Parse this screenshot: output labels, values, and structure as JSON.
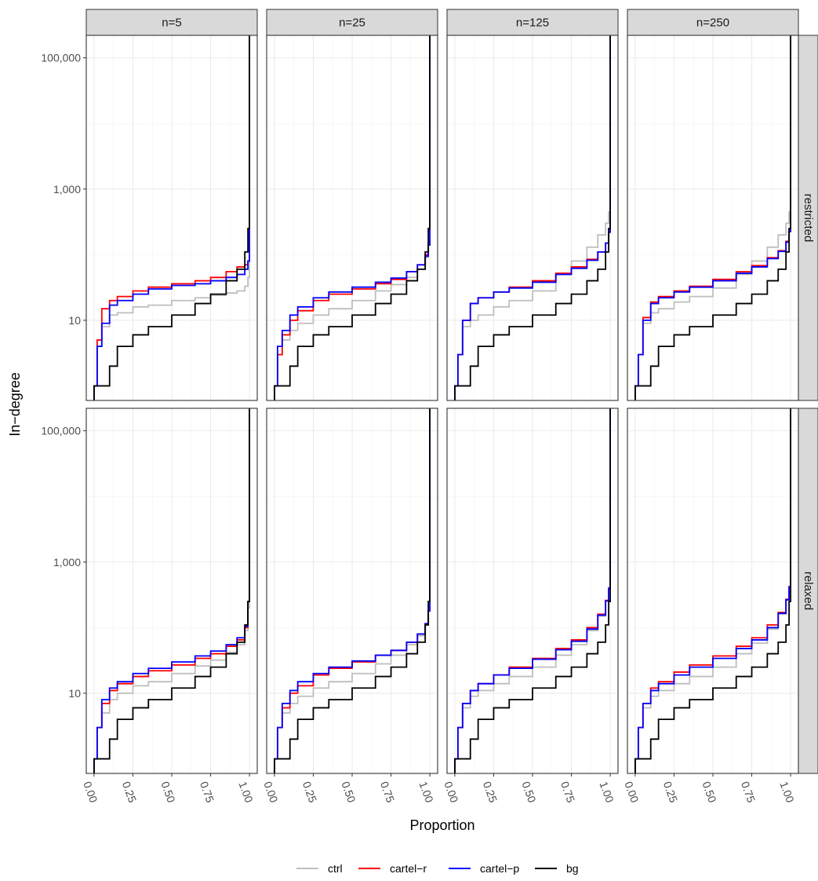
{
  "chart_data": {
    "type": "line",
    "xlabel": "Proportion",
    "ylabel": "In−degree",
    "x_ticks": [
      0,
      0.25,
      0.5,
      0.75,
      1
    ],
    "x_tick_labels": [
      "0.00",
      "0.25",
      "0.50",
      "0.75",
      "1.00"
    ],
    "xlim": [
      -0.05,
      1.05
    ],
    "y_scale": "log10",
    "y_ticks": [
      10,
      1000,
      100000
    ],
    "y_tick_labels": [
      "10",
      "1,000",
      "100,000"
    ],
    "ylim": [
      0.6,
      220000
    ],
    "grid": true,
    "legend_position": "bottom",
    "columns": [
      "n=5",
      "n=25",
      "n=125",
      "n=250"
    ],
    "rows": [
      "restricted",
      "relaxed"
    ],
    "series": [
      {
        "name": "ctrl",
        "color": "#bebebe"
      },
      {
        "name": "cartel−r",
        "color": "#ff0000"
      },
      {
        "name": "cartel−p",
        "color": "#0000ff"
      },
      {
        "name": "bg",
        "color": "#000000"
      }
    ],
    "x": [
      0,
      0.02,
      0.05,
      0.1,
      0.15,
      0.25,
      0.35,
      0.5,
      0.65,
      0.75,
      0.85,
      0.92,
      0.97,
      0.99,
      1.0
    ],
    "panels": [
      {
        "row": "restricted",
        "column": "n=5",
        "values": {
          "ctrl": [
            1,
            4,
            8,
            12,
            13,
            16,
            17,
            20,
            22,
            24,
            26,
            28,
            33,
            45,
            70
          ],
          "cartel−r": [
            1,
            5,
            15,
            20,
            23,
            28,
            32,
            36,
            40,
            45,
            55,
            65,
            70,
            80,
            120
          ],
          "cartel−p": [
            1,
            4,
            9,
            17,
            20,
            25,
            30,
            34,
            36,
            40,
            45,
            50,
            60,
            80,
            300
          ],
          "bg": [
            1,
            1,
            1,
            2,
            4,
            6,
            8,
            12,
            18,
            25,
            40,
            60,
            110,
            250,
            200000
          ]
        }
      },
      {
        "row": "restricted",
        "column": "n=25",
        "values": {
          "ctrl": [
            1,
            3,
            5,
            7,
            9,
            12,
            15,
            20,
            28,
            35,
            45,
            60,
            90,
            150,
            300
          ],
          "cartel−r": [
            1,
            3,
            6,
            10,
            14,
            20,
            25,
            30,
            36,
            42,
            55,
            70,
            100,
            150,
            250
          ],
          "cartel−p": [
            1,
            4,
            7,
            12,
            16,
            22,
            27,
            32,
            38,
            44,
            55,
            70,
            95,
            140,
            250
          ],
          "bg": [
            1,
            1,
            1,
            2,
            4,
            6,
            8,
            12,
            18,
            25,
            40,
            60,
            110,
            250,
            200000
          ]
        }
      },
      {
        "row": "restricted",
        "column": "n=125",
        "values": {
          "ctrl": [
            1,
            3,
            8,
            10,
            12,
            16,
            20,
            28,
            50,
            80,
            130,
            200,
            300,
            450,
            600
          ],
          "cartel−r": [
            1,
            3,
            10,
            18,
            22,
            27,
            32,
            40,
            52,
            65,
            85,
            110,
            150,
            220,
            400
          ],
          "cartel−p": [
            1,
            3,
            10,
            18,
            22,
            27,
            31,
            38,
            50,
            62,
            82,
            110,
            150,
            220,
            400
          ],
          "bg": [
            1,
            1,
            1,
            2,
            4,
            6,
            8,
            12,
            18,
            25,
            40,
            60,
            110,
            250,
            200000
          ]
        }
      },
      {
        "row": "restricted",
        "column": "n=250",
        "values": {
          "ctrl": [
            1,
            3,
            9,
            13,
            15,
            19,
            23,
            31,
            50,
            80,
            130,
            200,
            300,
            450,
            600
          ],
          "cartel−r": [
            1,
            3,
            11,
            19,
            23,
            28,
            33,
            42,
            55,
            68,
            90,
            115,
            160,
            230,
            400
          ],
          "cartel−p": [
            1,
            3,
            10,
            18,
            22,
            27,
            32,
            40,
            52,
            65,
            87,
            112,
            155,
            225,
            400
          ],
          "bg": [
            1,
            1,
            1,
            2,
            4,
            6,
            8,
            12,
            18,
            25,
            40,
            60,
            110,
            250,
            200000
          ]
        }
      },
      {
        "row": "relaxed",
        "column": "n=5",
        "values": {
          "ctrl": [
            1,
            3,
            5,
            8,
            10,
            13,
            15,
            20,
            26,
            32,
            42,
            55,
            90,
            200,
            500
          ],
          "cartel−r": [
            1,
            3,
            7,
            11,
            14,
            18,
            22,
            27,
            34,
            40,
            52,
            65,
            100,
            250,
            500
          ],
          "cartel−p": [
            1,
            3,
            8,
            12,
            15,
            20,
            24,
            30,
            37,
            44,
            55,
            70,
            105,
            250,
            500
          ],
          "bg": [
            1,
            1,
            1,
            2,
            4,
            6,
            8,
            12,
            18,
            25,
            40,
            60,
            110,
            250,
            200000
          ]
        }
      },
      {
        "row": "relaxed",
        "column": "n=25",
        "values": {
          "ctrl": [
            1,
            3,
            5,
            7,
            9,
            12,
            15,
            20,
            28,
            38,
            55,
            75,
            110,
            180,
            350
          ],
          "cartel−r": [
            1,
            3,
            6,
            10,
            13,
            19,
            24,
            30,
            38,
            45,
            60,
            80,
            115,
            180,
            350
          ],
          "cartel−p": [
            1,
            3,
            7,
            11,
            15,
            20,
            25,
            31,
            38,
            45,
            60,
            80,
            115,
            180,
            350
          ],
          "bg": [
            1,
            1,
            1,
            2,
            4,
            6,
            8,
            12,
            18,
            25,
            40,
            60,
            110,
            250,
            200000
          ]
        }
      },
      {
        "row": "relaxed",
        "column": "n=125",
        "values": {
          "ctrl": [
            1,
            3,
            6,
            9,
            11,
            14,
            18,
            25,
            38,
            55,
            90,
            150,
            260,
            400,
            600
          ],
          "cartel−r": [
            1,
            3,
            7,
            11,
            14,
            19,
            25,
            34,
            48,
            65,
            100,
            160,
            260,
            400,
            600
          ],
          "cartel−p": [
            1,
            3,
            7,
            11,
            14,
            19,
            24,
            33,
            46,
            62,
            95,
            155,
            255,
            400,
            600
          ],
          "bg": [
            1,
            1,
            1,
            2,
            4,
            6,
            8,
            12,
            18,
            25,
            40,
            60,
            110,
            250,
            200000
          ]
        }
      },
      {
        "row": "relaxed",
        "column": "n=250",
        "values": {
          "ctrl": [
            1,
            3,
            6,
            9,
            11,
            14,
            18,
            25,
            40,
            58,
            95,
            160,
            270,
            420,
            650
          ],
          "cartel−r": [
            1,
            3,
            7,
            12,
            15,
            21,
            27,
            37,
            52,
            70,
            110,
            170,
            270,
            420,
            650
          ],
          "cartel−p": [
            1,
            3,
            7,
            11,
            14,
            19,
            25,
            34,
            48,
            65,
            100,
            165,
            265,
            420,
            650
          ],
          "bg": [
            1,
            1,
            1,
            2,
            4,
            6,
            8,
            12,
            18,
            25,
            40,
            60,
            110,
            250,
            200000
          ]
        }
      }
    ]
  }
}
